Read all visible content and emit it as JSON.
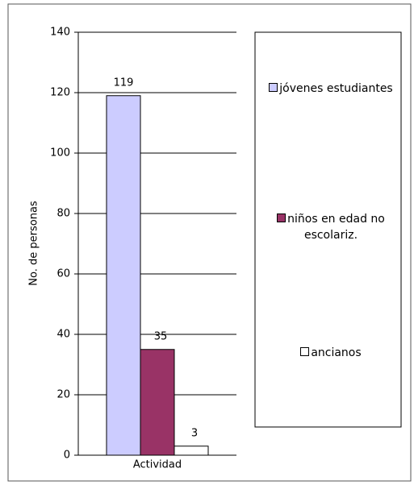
{
  "chart_data": {
    "type": "bar",
    "categories": [
      "Actividad"
    ],
    "y_label": "No. de personas",
    "series": [
      {
        "name": "jóvenes estudiantes",
        "color": "#ccccff",
        "values": [
          119
        ]
      },
      {
        "name": "niños en edad no escolariz.",
        "color": "#993366",
        "values": [
          35
        ]
      },
      {
        "name": "ancianos",
        "color": "#ffffff",
        "values": [
          3
        ]
      }
    ],
    "ylim": [
      0,
      140
    ],
    "yticks": [
      0,
      20,
      40,
      60,
      80,
      100,
      120,
      140
    ],
    "grid": true,
    "legend": "right"
  }
}
